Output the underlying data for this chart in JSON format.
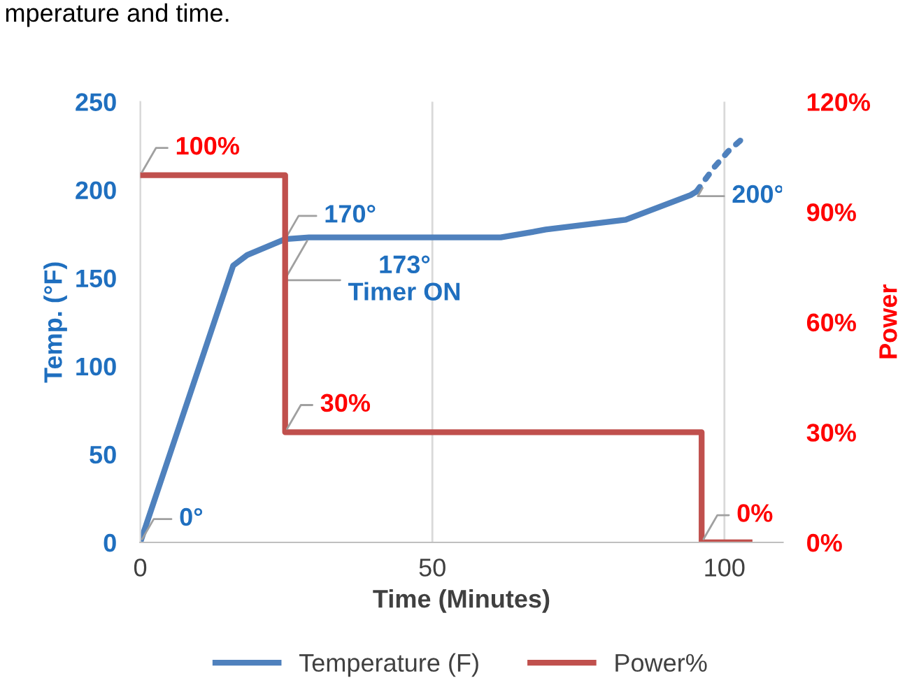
{
  "chart_data": {
    "type": "line",
    "xlabel": "Time (Minutes)",
    "ylabel": "Temp. (°F)",
    "y2label": "Power",
    "annotations": [
      "mperature and time.",
      {
        "text": "0°",
        "x": 0,
        "y": 0
      },
      {
        "text": "170°",
        "x": 24.8,
        "y": 172
      },
      {
        "text": "173°\nTimer ON",
        "x": 28.9,
        "y": 173
      },
      {
        "text": "200°",
        "x": 96.6,
        "y": 203
      }
    ],
    "series": [
      {
        "name": "Temperature (F)",
        "color": "#4f81bd",
        "line_style": "solid",
        "x": [
          0,
          15.9,
          18.3,
          24.8,
          28.9,
          61.7,
          67,
          69.4,
          83.1,
          94.2,
          95.2
        ],
        "values": [
          0,
          157,
          163,
          172,
          173,
          173,
          176,
          177.5,
          183,
          197,
          199
        ]
      },
      {
        "color": "#4f81bd",
        "line_style": "dotted",
        "x": [
          95.2,
          98.3,
          100.7,
          103.4
        ],
        "values": [
          199,
          213,
          222,
          230
        ]
      },
      {
        "name": "Power%",
        "color": "#c0504d",
        "type": "step",
        "axis": "y2",
        "x": [
          0,
          24.8,
          96.1,
          104.3
        ],
        "values": [
          100,
          30,
          0,
          0
        ],
        "value_labels": [
          "100%",
          "30%",
          "0%",
          null
        ]
      }
    ],
    "xlim": [
      0,
      110
    ],
    "xticks": [
      0,
      50,
      100
    ],
    "ylim": [
      0,
      250
    ],
    "yticks": [
      0,
      50,
      100,
      150,
      200,
      250
    ],
    "y2lim": [
      0,
      120
    ],
    "y2ticks": [
      {
        "value": 0,
        "label": "0%"
      },
      {
        "value": 30,
        "label": "30%"
      },
      {
        "value": 60,
        "label": "60%"
      },
      {
        "value": 90,
        "label": "90%"
      },
      {
        "value": 120,
        "label": "120%"
      }
    ],
    "grid": "x",
    "legend": "bottom"
  }
}
